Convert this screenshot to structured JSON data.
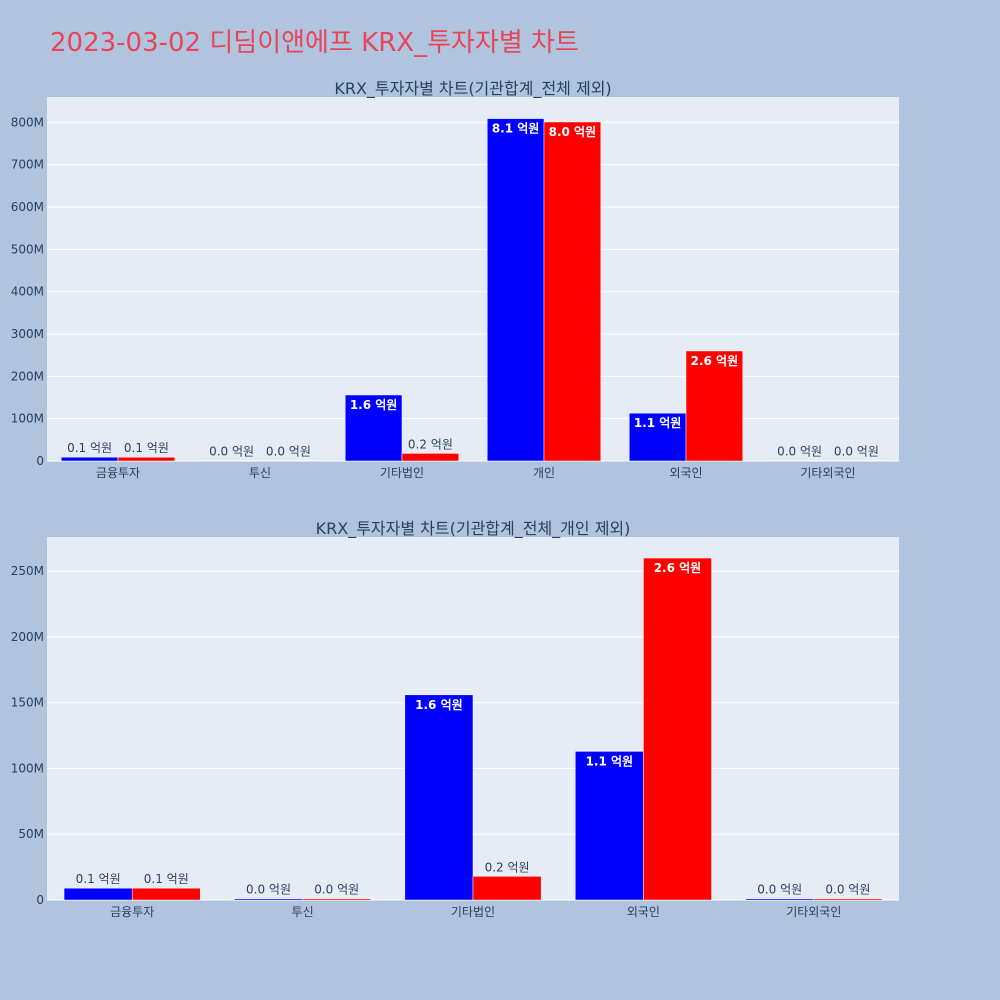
{
  "page_title": "2023-03-02 디딤이앤에프 KRX_투자자별 차트",
  "colors": {
    "buy": "#0000ff",
    "sell": "#ff0000",
    "plot_bg": "#e5ecf6",
    "page_bg": "#b0c4de"
  },
  "chart_data": [
    {
      "type": "bar",
      "title": "KRX_투자자별 차트(기관합계_전체 제외)",
      "categories": [
        "금융투자",
        "투신",
        "기타법인",
        "개인",
        "외국인",
        "기타외국인"
      ],
      "series": [
        {
          "color": "#0000ff",
          "values": [
            9000000,
            1000000,
            156000000,
            809000000,
            113000000,
            1000000
          ],
          "labels": [
            "0.1 억원",
            "0.0 억원",
            "1.6 억원",
            "8.1 억원",
            "1.1 억원",
            "0.0 억원"
          ]
        },
        {
          "color": "#ff0000",
          "values": [
            9000000,
            1000000,
            18000000,
            801000000,
            260000000,
            1000000
          ],
          "labels": [
            "0.1 억원",
            "0.0 억원",
            "0.2 억원",
            "8.0 억원",
            "2.6 억원",
            "0.0 억원"
          ]
        }
      ],
      "ylim": [
        0,
        860000000
      ],
      "yticks": [
        0,
        100000000,
        200000000,
        300000000,
        400000000,
        500000000,
        600000000,
        700000000,
        800000000
      ],
      "ytick_labels": [
        "0",
        "100M",
        "200M",
        "300M",
        "400M",
        "500M",
        "600M",
        "700M",
        "800M"
      ],
      "grid": true,
      "legend": "none"
    },
    {
      "type": "bar",
      "title": "KRX_투자자별 차트(기관합계_전체_개인 제외)",
      "categories": [
        "금융투자",
        "투신",
        "기타법인",
        "외국인",
        "기타외국인"
      ],
      "series": [
        {
          "color": "#0000ff",
          "values": [
            9000000,
            1000000,
            156000000,
            113000000,
            1000000
          ],
          "labels": [
            "0.1 억원",
            "0.0 억원",
            "1.6 억원",
            "1.1 억원",
            "0.0 억원"
          ]
        },
        {
          "color": "#ff0000",
          "values": [
            9000000,
            1000000,
            18000000,
            260000000,
            1000000
          ],
          "labels": [
            "0.1 억원",
            "0.0 억원",
            "0.2 억원",
            "2.6 억원",
            "0.0 억원"
          ]
        }
      ],
      "ylim": [
        0,
        276000000
      ],
      "yticks": [
        0,
        50000000,
        100000000,
        150000000,
        200000000,
        250000000
      ],
      "ytick_labels": [
        "0",
        "50M",
        "100M",
        "150M",
        "200M",
        "250M"
      ],
      "grid": true,
      "legend": "none"
    }
  ]
}
